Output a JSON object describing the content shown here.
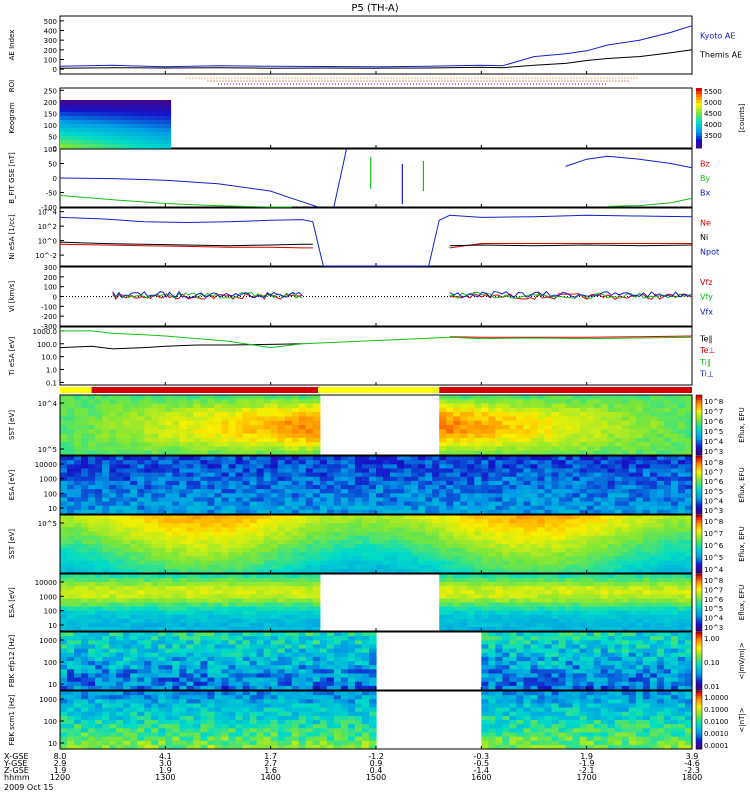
{
  "title": "P5 (TH-A)",
  "date": "2009 Oct 15",
  "colors": {
    "red": "#d40000",
    "green": "#16c016",
    "blue": "#1020c8",
    "yellow": "#ffff00",
    "black": "#000000"
  },
  "chart_data": [
    {
      "type": "line",
      "panel": "ae",
      "ylabel": "AE Index",
      "ytick_labels": [
        "500",
        "400",
        "300",
        "200",
        "100",
        "0"
      ],
      "yticks": [
        500,
        400,
        300,
        200,
        100,
        0
      ],
      "ylim": [
        -50,
        550
      ],
      "x_hours": [
        12.0,
        12.5,
        13.0,
        13.5,
        14.0,
        14.5,
        15.0,
        15.5,
        16.0,
        16.2,
        16.5,
        16.8,
        17.0,
        17.2,
        17.5,
        17.8,
        18.0
      ],
      "series": [
        {
          "name": "Kyoto AE",
          "color": "#1020c8",
          "values": [
            30,
            40,
            25,
            35,
            30,
            28,
            25,
            30,
            40,
            35,
            130,
            160,
            190,
            250,
            300,
            380,
            450
          ]
        },
        {
          "name": "Themis AE",
          "color": "#000000",
          "values": [
            10,
            15,
            12,
            15,
            10,
            12,
            10,
            12,
            20,
            15,
            40,
            60,
            90,
            110,
            130,
            170,
            200
          ]
        }
      ]
    },
    {
      "type": "heatmap",
      "panel": "keogram",
      "ylabel": "Keogram",
      "ytick_labels": [
        "250",
        "200",
        "150",
        "100",
        "50",
        "0"
      ],
      "yticks": [
        250,
        200,
        150,
        100,
        50,
        0
      ],
      "ylim": [
        0,
        260
      ],
      "colorbar_label": "[counts]",
      "colorbar_ticks": [
        "5500",
        "5000",
        "4500",
        "4000",
        "3500"
      ],
      "x_range_hours": [
        12.0,
        13.05
      ]
    },
    {
      "type": "line",
      "panel": "b",
      "ylabel": "B_FIT GSE [nT]",
      "ytick_labels": [
        "100",
        "50",
        "0",
        "-50",
        "-100"
      ],
      "yticks": [
        100,
        50,
        0,
        -50,
        -100
      ],
      "ylim": [
        -100,
        100
      ],
      "x_hours": [
        12.0,
        12.5,
        13.0,
        13.5,
        14.0,
        14.2,
        14.45,
        14.6,
        16.8,
        17.0,
        17.2,
        17.5,
        17.8,
        18.0
      ],
      "series": [
        {
          "name": "Bz",
          "color": "#d40000",
          "values": [
            null,
            null,
            null,
            null,
            null,
            null,
            null,
            null,
            null,
            null,
            null,
            null,
            null,
            null
          ]
        },
        {
          "name": "By",
          "color": "#16c016",
          "values": [
            -60,
            -75,
            -88,
            -96,
            -100,
            -100,
            null,
            null,
            null,
            null,
            -98,
            -95,
            -85,
            -70
          ]
        },
        {
          "name": "Bx",
          "color": "#1020c8",
          "values": [
            0,
            -2,
            -8,
            -20,
            -45,
            -70,
            -100,
            null,
            40,
            65,
            75,
            65,
            50,
            35
          ]
        }
      ]
    },
    {
      "type": "line",
      "panel": "ni",
      "ylabel": "Ni eSA [1/cc]",
      "ytick_labels": [
        "10^4",
        "10^2",
        "10^0",
        "10^-2"
      ],
      "yticks": [
        4,
        2,
        0,
        -2
      ],
      "ylim": [
        -3.5,
        4.5
      ],
      "x_hours": [
        12.0,
        12.4,
        12.8,
        13.2,
        13.6,
        14.0,
        14.3,
        14.4,
        14.5,
        15.5,
        15.6,
        15.7,
        16.0,
        16.5,
        17.0,
        17.5,
        18.0
      ],
      "series": [
        {
          "name": "Ne",
          "color": "#d40000",
          "values": [
            -0.5,
            -0.6,
            -0.7,
            -0.8,
            -0.9,
            -0.9,
            -1.0,
            -1.0,
            null,
            null,
            null,
            -1.0,
            -0.4,
            -0.4,
            -0.4,
            -0.4,
            -0.4
          ]
        },
        {
          "name": "Ni",
          "color": "#000000",
          "values": [
            -0.2,
            -0.4,
            -0.5,
            -0.6,
            -0.7,
            -0.6,
            -0.5,
            -0.5,
            null,
            null,
            null,
            -0.7,
            -0.6,
            -0.7,
            -0.6,
            -0.7,
            -0.6
          ]
        },
        {
          "name": "Npot",
          "color": "#1020c8",
          "values": [
            3.2,
            3.0,
            2.6,
            2.5,
            2.6,
            2.8,
            2.9,
            2.6,
            -3.5,
            -3.5,
            2.8,
            3.5,
            3.2,
            3.3,
            3.5,
            3.4,
            3.3
          ]
        }
      ]
    },
    {
      "type": "scatter",
      "panel": "vi",
      "ylabel": "Vi [km/s]",
      "ytick_labels": [
        "300",
        "200",
        "100",
        "0",
        "-100",
        "-200",
        "-300"
      ],
      "yticks": [
        300,
        200,
        100,
        0,
        -100,
        -200,
        -300
      ],
      "ylim": [
        -300,
        300
      ],
      "x_range_hours": [
        [
          12.5,
          14.3
        ],
        [
          15.7,
          18.0
        ]
      ],
      "series": [
        {
          "name": "Vfz",
          "color": "#d40000"
        },
        {
          "name": "Vfy",
          "color": "#16c016"
        },
        {
          "name": "Vfx",
          "color": "#1020c8"
        }
      ]
    },
    {
      "type": "line",
      "panel": "ti",
      "ylabel": "Ti eSA [eV]",
      "ytick_labels": [
        "1000.0",
        "100.0",
        "10.0",
        "1.0",
        "0.1"
      ],
      "yticks": [
        3,
        2,
        1,
        0,
        -1
      ],
      "ylim": [
        -1.2,
        3.3
      ],
      "x_hours": [
        12.0,
        12.3,
        12.5,
        12.8,
        13.0,
        13.3,
        13.6,
        14.0,
        14.3,
        15.7,
        16.0,
        16.5,
        17.0,
        17.5,
        18.0
      ],
      "series": [
        {
          "name": "Te∥",
          "color": "#000000",
          "values": [
            1.7,
            1.8,
            1.6,
            1.7,
            1.8,
            1.9,
            1.9,
            1.95,
            2.0,
            null,
            null,
            null,
            null,
            null,
            null
          ]
        },
        {
          "name": "Te⊥",
          "color": "#d40000",
          "values": [
            null,
            null,
            null,
            null,
            null,
            null,
            null,
            null,
            null,
            2.55,
            2.5,
            2.5,
            2.5,
            2.55,
            2.6
          ]
        },
        {
          "name": "Ti∥",
          "color": "#16c016",
          "values": [
            3.0,
            3.0,
            2.8,
            2.7,
            2.6,
            2.4,
            2.2,
            1.7,
            2.0,
            2.5,
            2.4,
            2.45,
            2.4,
            2.45,
            2.5
          ]
        },
        {
          "name": "Ti⊥",
          "color": "#1020c8",
          "values": [
            null,
            null,
            null,
            null,
            null,
            null,
            null,
            null,
            null,
            null,
            null,
            null,
            null,
            null,
            null
          ]
        }
      ]
    },
    {
      "type": "heatmap",
      "panel": "sst_e",
      "ylabel": "SST [eV]",
      "ytick_labels": [
        "10^4",
        "10^5"
      ],
      "colorbar_label": "Eflux, EFU",
      "colorbar_ticks": [
        "10^8",
        "10^7",
        "10^6",
        "10^5",
        "10^4",
        "10^3"
      ],
      "gap_hours": [
        14.45,
        15.6
      ]
    },
    {
      "type": "heatmap",
      "panel": "esa_e",
      "ylabel": "ESA [eV]",
      "ytick_labels": [
        "10000",
        "1000",
        "100",
        "10"
      ],
      "colorbar_label": "Eflux, EFU",
      "colorbar_ticks": [
        "10^8",
        "10^7",
        "10^6",
        "10^5",
        "10^4",
        "10^3"
      ],
      "gap_hours": []
    },
    {
      "type": "heatmap",
      "panel": "sst_i",
      "ylabel": "SST [eV]",
      "ytick_labels": [
        "10^5"
      ],
      "colorbar_label": "Eflux, EFU",
      "colorbar_ticks": [
        "10^8",
        "10^7",
        "10^6",
        "10^5",
        "10^4"
      ],
      "gap_hours": []
    },
    {
      "type": "heatmap",
      "panel": "esa_i",
      "ylabel": "ESA [eV]",
      "ytick_labels": [
        "10000",
        "1000",
        "100",
        "10"
      ],
      "colorbar_label": "Eflux, EFU",
      "colorbar_ticks": [
        "10^8",
        "10^7",
        "10^6",
        "10^5",
        "10^4",
        "10^3"
      ],
      "gap_hours": [
        14.45,
        15.6
      ]
    },
    {
      "type": "heatmap",
      "panel": "fbk_e",
      "ylabel": "FBK efp12 [Hz]",
      "ytick_labels": [
        "1000",
        "100",
        "10"
      ],
      "colorbar_label": "<|mV/m|>",
      "colorbar_ticks": [
        "1.00",
        "0.10",
        "0.01"
      ],
      "gap_hours": [
        15.0,
        16.0
      ]
    },
    {
      "type": "heatmap",
      "panel": "fbk_b",
      "ylabel": "FBK scm1 [Hz]",
      "ytick_labels": [
        "1000",
        "100",
        "10"
      ],
      "colorbar_label": "<|nT|>",
      "colorbar_ticks": [
        "1.0000",
        "0.1000",
        "0.0100",
        "0.0010",
        "0.0001"
      ],
      "gap_hours": [
        15.0,
        16.0
      ]
    }
  ],
  "legends": {
    "ae": [
      "Kyoto AE",
      "Themis AE"
    ],
    "b": [
      "Bz",
      "By",
      "Bx"
    ],
    "ni": [
      "Ne",
      "Ni",
      "Npot"
    ],
    "vi": [
      "Vfz",
      "Vfy",
      "Vfx"
    ],
    "ti": [
      "Te∥",
      "Te⊥",
      "Ti∥",
      "Ti⊥"
    ]
  },
  "roi_label": "ROI",
  "x_axis": {
    "row_labels": [
      "X-GSE",
      "Y-GSE",
      "Z-GSE",
      "hhmm"
    ],
    "columns": [
      {
        "hhmm": "1200",
        "x": "8.0",
        "y": "2.9",
        "z": "1.9"
      },
      {
        "hhmm": "1300",
        "x": "4.1",
        "y": "3.0",
        "z": "1.9"
      },
      {
        "hhmm": "1400",
        "x": "1.7",
        "y": "2.7",
        "z": "1.6"
      },
      {
        "hhmm": "1500",
        "x": "-1.2",
        "y": "0.9",
        "z": "0.4"
      },
      {
        "hhmm": "1600",
        "x": "-0.3",
        "y": "-0.5",
        "z": "-1.4"
      },
      {
        "hhmm": "1700",
        "x": "1.9",
        "y": "-1.9",
        "z": "-2.1"
      },
      {
        "hhmm": "1800",
        "x": "3.9",
        "y": "-4.6",
        "z": "-2.3"
      }
    ]
  },
  "mode_bar": [
    {
      "from": 12.0,
      "to": 12.3,
      "color": "#ffff00"
    },
    {
      "from": 12.3,
      "to": 14.45,
      "color": "#d40000"
    },
    {
      "from": 14.45,
      "to": 15.6,
      "color": "#ffff00"
    },
    {
      "from": 15.6,
      "to": 18.0,
      "color": "#d40000"
    }
  ]
}
